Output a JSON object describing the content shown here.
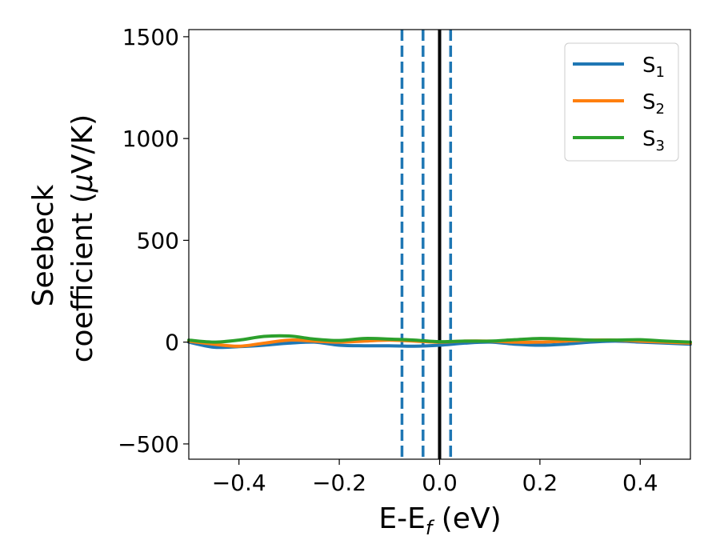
{
  "chart_data": {
    "type": "line",
    "xlabel": {
      "main": "E-E",
      "sub": "f",
      "unit": " (eV)"
    },
    "ylabel": {
      "line1": "Seebeck",
      "line2": "coefficient  (",
      "mu": "μ",
      "unit": "V/K)"
    },
    "xlim": [
      -0.5,
      0.5
    ],
    "ylim": [
      -575,
      1535
    ],
    "xticks": [
      -0.4,
      -0.2,
      0.0,
      0.2,
      0.4
    ],
    "xtick_labels": [
      "−0.4",
      "−0.2",
      "0.0",
      "0.2",
      "0.4"
    ],
    "yticks": [
      -500,
      0,
      500,
      1000,
      1500
    ],
    "ytick_labels": [
      "−500",
      "0",
      "500",
      "1000",
      "1500"
    ],
    "grid": false,
    "legend_position": "top-right",
    "vertical_lines": [
      {
        "x": 0.0,
        "style": "solid",
        "color": "#000000"
      },
      {
        "x": -0.075,
        "style": "dashed",
        "color": "#1f77b4"
      },
      {
        "x": -0.033,
        "style": "dashed",
        "color": "#1f77b4"
      },
      {
        "x": 0.022,
        "style": "dashed",
        "color": "#1f77b4"
      }
    ],
    "series": [
      {
        "name": "S",
        "sub": "1",
        "color": "#1f77b4",
        "x": [
          -0.5,
          -0.45,
          -0.4,
          -0.35,
          -0.3,
          -0.25,
          -0.2,
          -0.15,
          -0.1,
          -0.05,
          0.0,
          0.05,
          0.1,
          0.15,
          0.2,
          0.25,
          0.3,
          0.35,
          0.4,
          0.45,
          0.5
        ],
        "y": [
          0,
          -25,
          -22,
          -15,
          -5,
          0,
          -15,
          -18,
          -18,
          -20,
          -15,
          -5,
          0,
          -10,
          -15,
          -10,
          0,
          5,
          0,
          -5,
          -10
        ]
      },
      {
        "name": "S",
        "sub": "2",
        "color": "#ff7f0e",
        "x": [
          -0.5,
          -0.45,
          -0.4,
          -0.35,
          -0.3,
          -0.25,
          -0.2,
          -0.15,
          -0.1,
          -0.05,
          0.0,
          0.05,
          0.1,
          0.15,
          0.2,
          0.25,
          0.3,
          0.35,
          0.4,
          0.45,
          0.5
        ],
        "y": [
          5,
          -10,
          -20,
          -5,
          10,
          5,
          0,
          5,
          10,
          5,
          0,
          5,
          5,
          0,
          0,
          5,
          10,
          10,
          5,
          0,
          -5
        ]
      },
      {
        "name": "S",
        "sub": "3",
        "color": "#2ca02c",
        "x": [
          -0.5,
          -0.45,
          -0.4,
          -0.35,
          -0.3,
          -0.25,
          -0.2,
          -0.15,
          -0.1,
          -0.05,
          0.0,
          0.05,
          0.1,
          0.15,
          0.2,
          0.25,
          0.3,
          0.35,
          0.4,
          0.45,
          0.5
        ],
        "y": [
          10,
          0,
          10,
          28,
          30,
          15,
          8,
          18,
          15,
          10,
          2,
          5,
          5,
          12,
          18,
          15,
          10,
          10,
          12,
          5,
          0
        ]
      }
    ]
  }
}
